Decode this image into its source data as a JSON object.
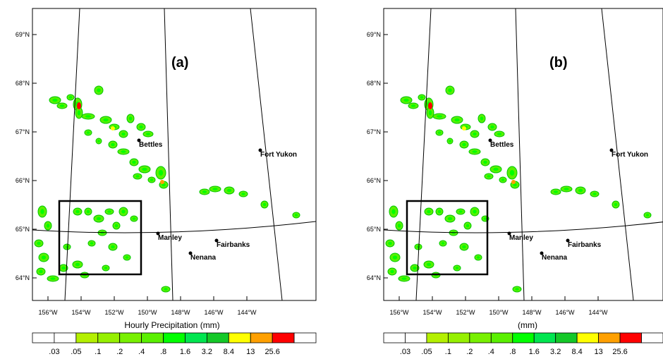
{
  "panels": [
    {
      "id": "a",
      "label": "(a)",
      "colorbar_title": "Hourly Precipitation  (mm)"
    },
    {
      "id": "b",
      "label": "(b)",
      "colorbar_title": "(mm)"
    }
  ],
  "lat_labels": [
    "69°N",
    "68°N",
    "67°N",
    "66°N",
    "65°N",
    "64°N"
  ],
  "lon_labels": [
    "156°W",
    "154°W",
    "152°W",
    "150°W",
    "148°W",
    "146°W",
    "144°W"
  ],
  "cities": [
    {
      "name": "Bettles"
    },
    {
      "name": "Fort Yukon"
    },
    {
      "name": "Manley"
    },
    {
      "name": "Fairbanks"
    },
    {
      "name": "Nenana"
    }
  ],
  "colorbar": {
    "labels": [
      ".03",
      ".05",
      ".1",
      ".2",
      ".4",
      ".8",
      "1.6",
      "3.2",
      "8.4",
      "13",
      "25.6"
    ],
    "colors": [
      "#ffffff",
      "#ffffff",
      "#b4f000",
      "#96f000",
      "#78f000",
      "#5af000",
      "#00ff00",
      "#00e650",
      "#14c828",
      "#ffff00",
      "#ffa000",
      "#ff0000",
      "#ffffff"
    ]
  }
}
